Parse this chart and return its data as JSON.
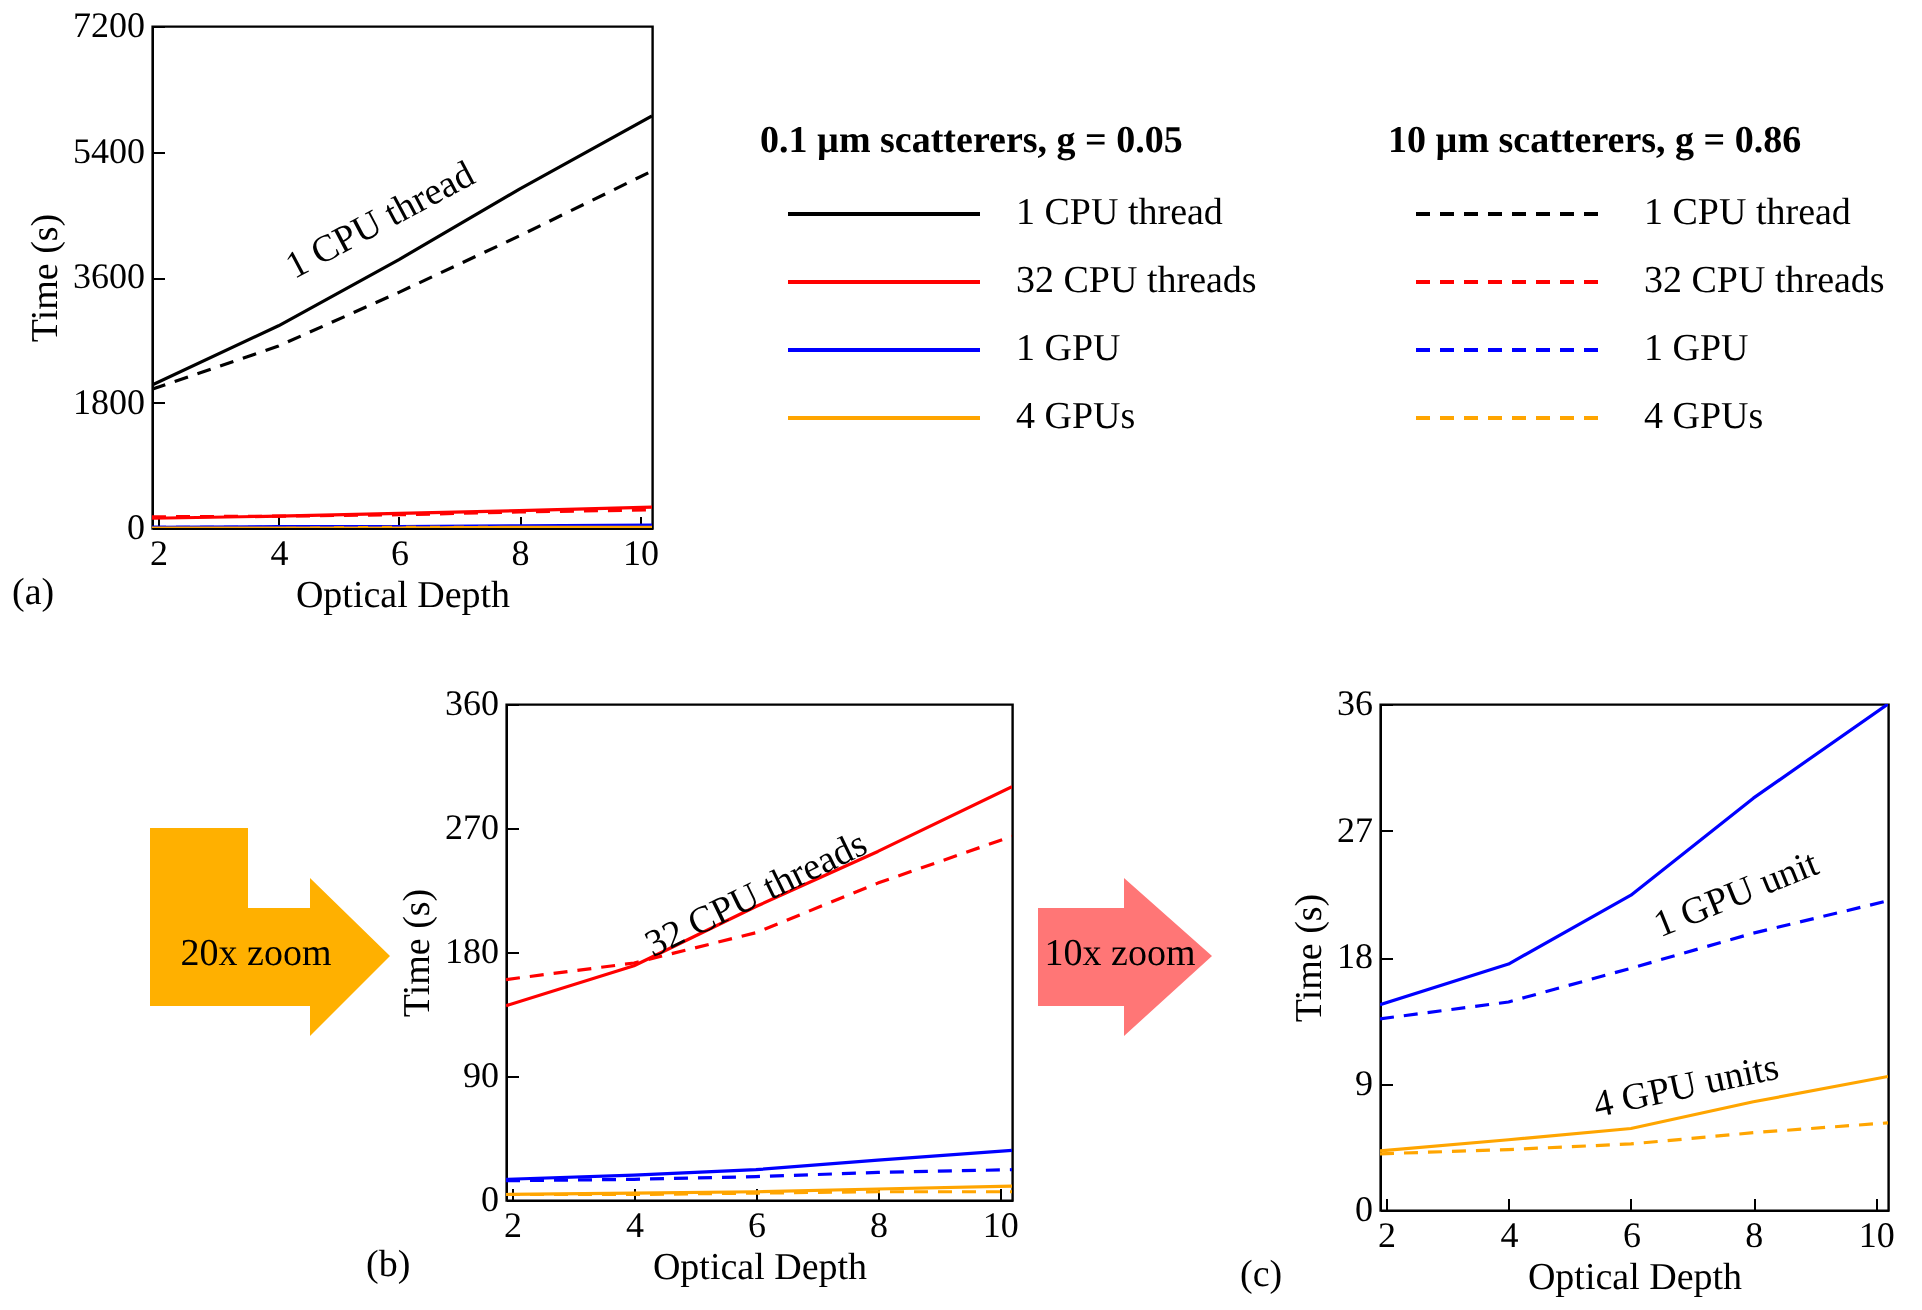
{
  "chart_data": [
    {
      "type": "line",
      "xlabel": "Optical Depth",
      "ylabel": "Time (s)",
      "xlim": [
        1.9,
        10.2
      ],
      "ylim": [
        0,
        7200
      ],
      "xticks": [
        2,
        4,
        6,
        8,
        10
      ],
      "yticks": [
        0,
        1800,
        3600,
        5400,
        7200
      ],
      "grid": false,
      "legend": "right",
      "x": [
        1.9,
        4,
        6,
        8,
        10.2
      ],
      "series": [
        {
          "name": "1 CPU thread",
          "color": "#000000",
          "line_style": "solid",
          "values": [
            2050,
            2900,
            3850,
            4860,
            5910
          ]
        },
        {
          "name": "32 CPU threads",
          "color": "#ff0000",
          "line_style": "solid",
          "values": [
            140,
            170,
            210,
            250,
            300
          ]
        },
        {
          "name": "1 GPU",
          "color": "#0000ff",
          "line_style": "solid",
          "values": [
            10,
            20,
            20,
            30,
            40
          ]
        },
        {
          "name": "4 GPUs",
          "color": "#ffa500",
          "line_style": "solid",
          "values": [
            0,
            0,
            10,
            10,
            10
          ]
        },
        {
          "name": "1 CPU thread",
          "color": "#000000",
          "line_style": "dashed",
          "values": [
            1990,
            2610,
            3380,
            4190,
            5120
          ]
        },
        {
          "name": "32 CPU threads",
          "color": "#ff0000",
          "line_style": "dashed",
          "values": [
            160,
            170,
            190,
            230,
            260
          ]
        },
        {
          "name": "1 GPU",
          "color": "#0000ff",
          "line_style": "dashed",
          "values": [
            10,
            10,
            20,
            20,
            20
          ]
        },
        {
          "name": "4 GPUs",
          "color": "#ffa500",
          "line_style": "dashed",
          "values": [
            0,
            0,
            0,
            10,
            10
          ]
        }
      ],
      "annotations": [
        "1 CPU thread",
        "0.1 µm scatterers, g = 0.05",
        "10 µm scatterers, g = 0.86",
        "(a)"
      ]
    },
    {
      "type": "line",
      "xlabel": "Optical Depth",
      "ylabel": "Time (s)",
      "xlim": [
        1.9,
        10.2
      ],
      "ylim": [
        0,
        360
      ],
      "xticks": [
        2,
        4,
        6,
        8,
        10
      ],
      "yticks": [
        0,
        90,
        180,
        270,
        360
      ],
      "grid": false,
      "x": [
        1.9,
        4,
        6,
        8,
        10.2
      ],
      "series": [
        {
          "color": "#ff0000",
          "line_style": "solid",
          "values": [
            141,
            170,
            213,
            253,
            300
          ]
        },
        {
          "color": "#0000ff",
          "line_style": "solid",
          "values": [
            15,
            18,
            22,
            29,
            36
          ]
        },
        {
          "color": "#ffa500",
          "line_style": "solid",
          "values": [
            4,
            5,
            6,
            8,
            10
          ]
        },
        {
          "color": "#ff0000",
          "line_style": "dashed",
          "values": [
            160,
            172,
            194,
            230,
            264
          ]
        },
        {
          "color": "#0000ff",
          "line_style": "dashed",
          "values": [
            14,
            15,
            17,
            20,
            22
          ]
        },
        {
          "color": "#ffa500",
          "line_style": "dashed",
          "values": [
            4,
            4,
            5,
            6,
            6
          ]
        }
      ],
      "annotations": [
        "32 CPU threads",
        "20x zoom",
        "(b)"
      ]
    },
    {
      "type": "line",
      "xlabel": "Optical Depth",
      "ylabel": "Time (s)",
      "xlim": [
        1.9,
        10.2
      ],
      "ylim": [
        0,
        36
      ],
      "xticks": [
        2,
        4,
        6,
        8,
        10
      ],
      "yticks": [
        0,
        9,
        18,
        27,
        36
      ],
      "grid": false,
      "x": [
        1.9,
        4,
        6,
        8,
        10.2
      ],
      "series": [
        {
          "color": "#0000ff",
          "line_style": "solid",
          "values": [
            14.6,
            17.5,
            22.4,
            29.3,
            36
          ]
        },
        {
          "color": "#ffa500",
          "line_style": "solid",
          "values": [
            4.2,
            5.0,
            5.8,
            7.7,
            9.5
          ]
        },
        {
          "color": "#0000ff",
          "line_style": "dashed",
          "values": [
            13.6,
            14.8,
            17.2,
            19.7,
            22
          ]
        },
        {
          "color": "#ffa500",
          "line_style": "dashed",
          "values": [
            4.0,
            4.3,
            4.7,
            5.5,
            6.2
          ]
        }
      ],
      "annotations": [
        "1 GPU unit",
        "4 GPU units",
        "10x zoom",
        "(c)"
      ]
    }
  ]
}
